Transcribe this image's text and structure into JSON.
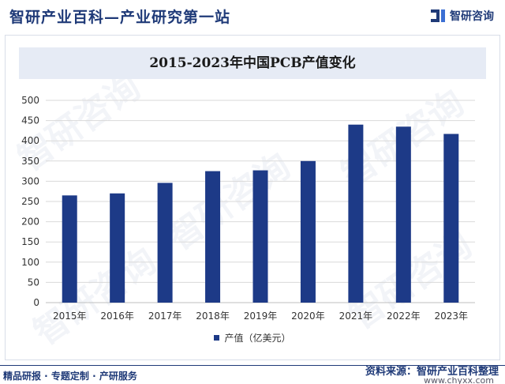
{
  "header": {
    "title": "智研产业百科—产业研究第一站",
    "logo_text": "智研咨询",
    "logo_icon": "zhiyan-logo-icon"
  },
  "watermark_text": "智研咨询",
  "chart_data": {
    "type": "bar",
    "title": "2015-2023年中国PCB产值变化",
    "categories": [
      "2015年",
      "2016年",
      "2017年",
      "2018年",
      "2019年",
      "2020年",
      "2021年",
      "2022年",
      "2023年"
    ],
    "series": [
      {
        "name": "产值（亿美元）",
        "values": [
          265,
          270,
          296,
          325,
          327,
          350,
          440,
          435,
          417
        ],
        "color": "#1d3a87"
      }
    ],
    "xlabel": "",
    "ylabel": "",
    "ylim": [
      0,
      500
    ],
    "yticks": [
      0,
      50,
      100,
      150,
      200,
      250,
      300,
      350,
      400,
      450,
      500
    ],
    "grid": true,
    "legend_position": "bottom-center"
  },
  "footer": {
    "left_text": "精品研报 · 专题定制 · 产研服务",
    "source": "资料来源：智研产业百科整理",
    "site": "www.chyxx.com"
  }
}
